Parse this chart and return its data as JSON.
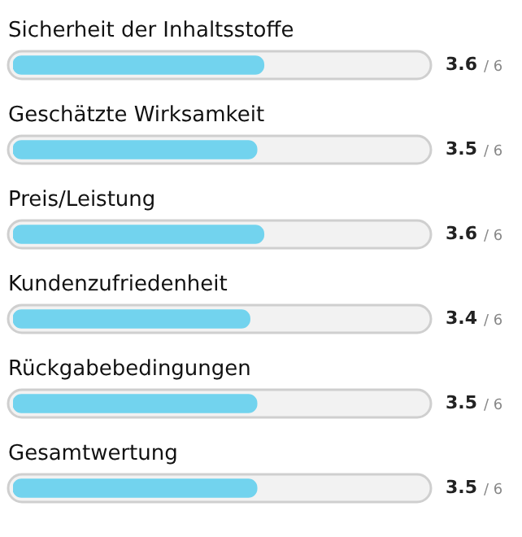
{
  "chart_data": {
    "type": "bar",
    "orientation": "horizontal",
    "categories": [
      "Sicherheit der Inhaltsstoffe",
      "Geschätzte Wirksamkeit",
      "Preis/Leistung",
      "Kundenzufriedenheit",
      "Rückgabebedingungen",
      "Gesamtwertung"
    ],
    "values": [
      3.6,
      3.5,
      3.6,
      3.4,
      3.5,
      3.5
    ],
    "data_labels": true,
    "annotations": [
      "/ 6",
      "/ 6",
      "/ 6",
      "/ 6",
      "/ 6",
      "/ 6"
    ],
    "color": "#72d3ee",
    "xlim": [
      0,
      6
    ],
    "tick_labels": false,
    "grid": false,
    "legend": false
  }
}
